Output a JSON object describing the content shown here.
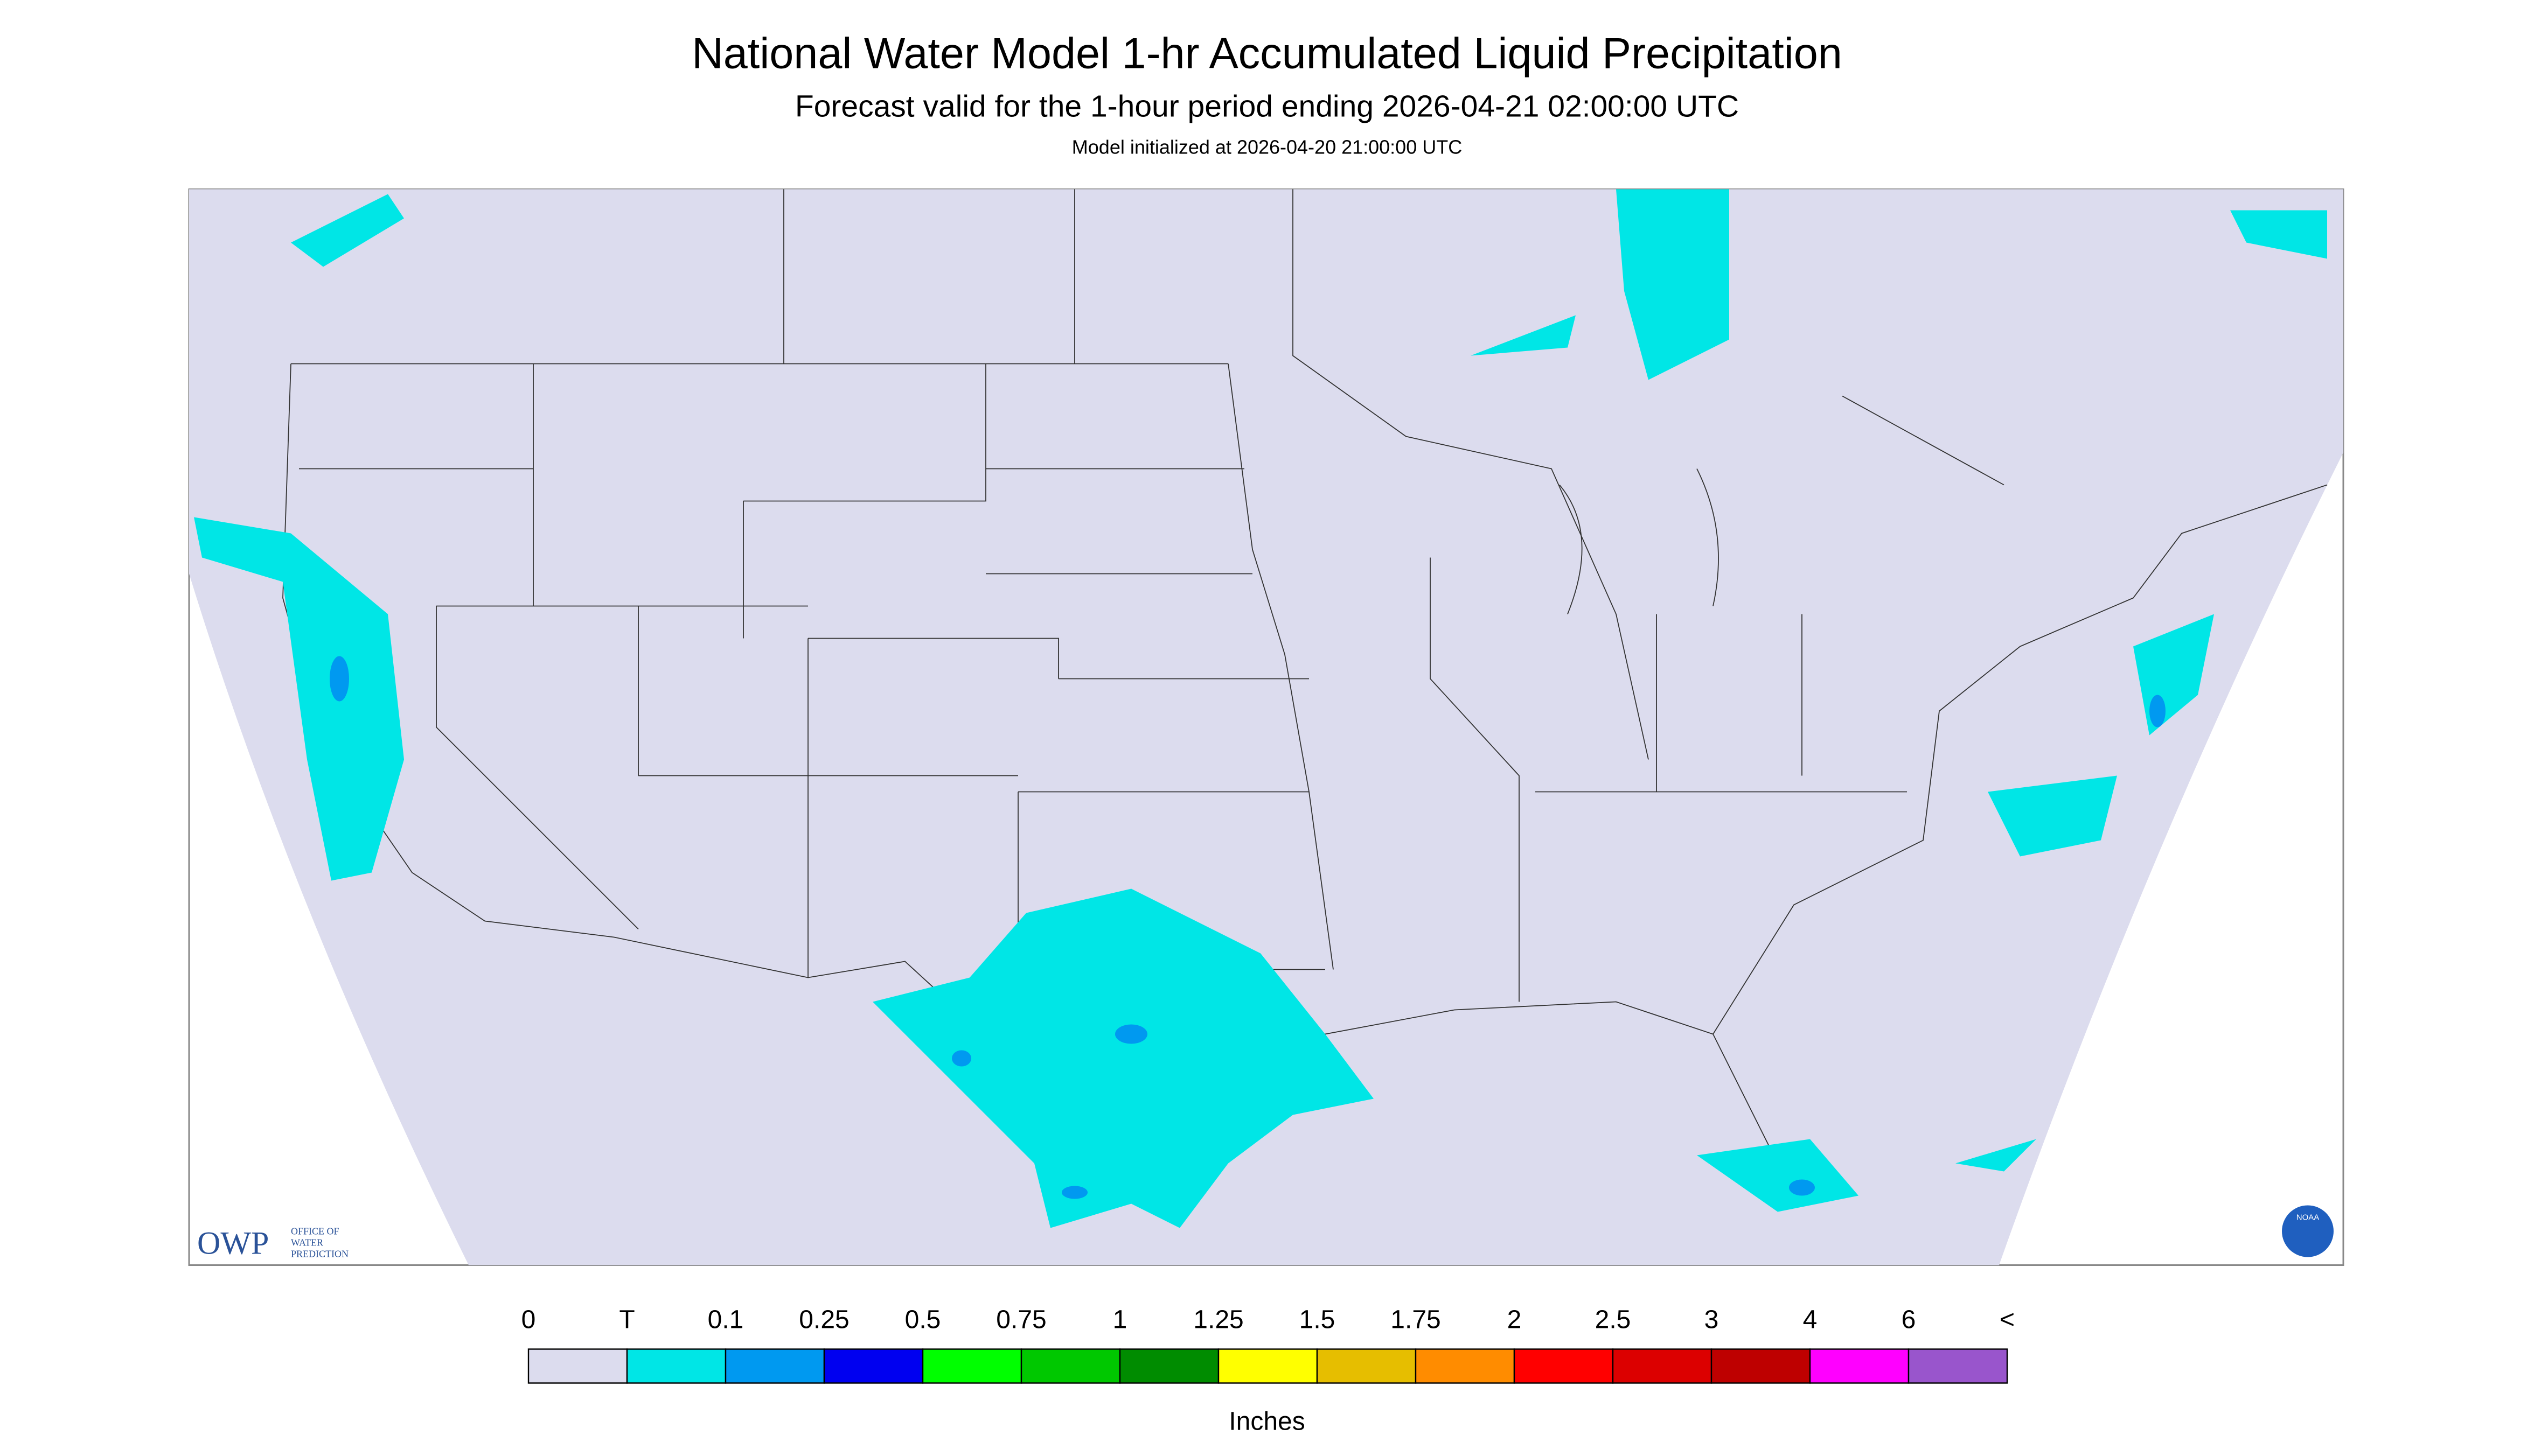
{
  "header": {
    "title": "National Water Model 1-hr Accumulated Liquid Precipitation",
    "subtitle": "Forecast valid for the 1-hour period ending 2026-04-21 02:00:00 UTC",
    "initialized": "Model initialized at 2026-04-20 21:00:00 UTC"
  },
  "logo": {
    "mark": "OWP",
    "lines": [
      "OFFICE OF",
      "WATER",
      "PREDICTION"
    ],
    "badge": "NOAA"
  },
  "legend": {
    "labels": [
      "0",
      "T",
      "0.1",
      "0.25",
      "0.5",
      "0.75",
      "1",
      "1.25",
      "1.5",
      "1.75",
      "2",
      "2.5",
      "3",
      "4",
      "6",
      "<"
    ],
    "colors": [
      "#dcdcee",
      "#00e6e6",
      "#0099f0",
      "#0000f0",
      "#00ff00",
      "#00c800",
      "#008c00",
      "#ffff00",
      "#e6be00",
      "#ff8c00",
      "#ff0000",
      "#dc0000",
      "#be0000",
      "#ff00ff",
      "#9955cc"
    ],
    "units": "Inches"
  }
}
